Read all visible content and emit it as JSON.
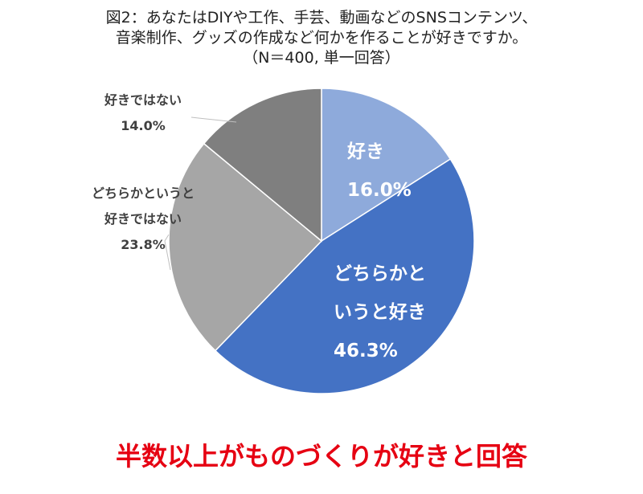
{
  "title_lines": [
    "図2：あなたはDIYや工作、手芸、動画などのSNSコンテンツ、",
    "音楽制作、グッズの作成など何かを作ることが好きですか。",
    "（N＝400, 単一回答）"
  ],
  "headline": "半数以上がものづくりが好きと回答",
  "headline_color": "#e60012",
  "chart_data": {
    "type": "pie",
    "title": "図2：あなたはDIYや工作、手芸、動画などのSNSコンテンツ、音楽制作、グッズの作成など何かを作ることが好きですか。（N＝400, 単一回答）",
    "slices": [
      {
        "label": "好き",
        "label_lines": [
          "好き"
        ],
        "value": 16.0,
        "value_text": "16.0%",
        "color": "#8eaadb",
        "label_inside": true
      },
      {
        "label": "どちらかというと好き",
        "label_lines": [
          "どちらかと",
          "いうと好き"
        ],
        "value": 46.3,
        "value_text": "46.3%",
        "color": "#4472c4",
        "label_inside": true
      },
      {
        "label": "どちらかというと好きではない",
        "label_lines": [
          "どちらかというと",
          "好きではない"
        ],
        "value": 23.8,
        "value_text": "23.8%",
        "color": "#a6a6a6",
        "label_inside": false
      },
      {
        "label": "好きではない",
        "label_lines": [
          "好きではない"
        ],
        "value": 14.0,
        "value_text": "14.0%",
        "color": "#7f7f7f",
        "label_inside": false
      }
    ],
    "start_angle": "12 o'clock",
    "direction": "clockwise",
    "legend": "none"
  }
}
